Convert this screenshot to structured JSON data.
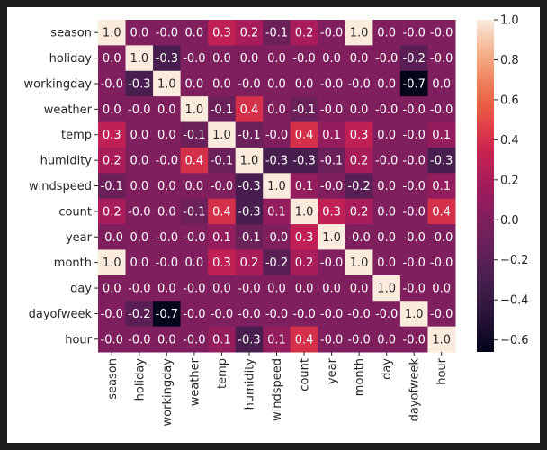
{
  "chart_data": {
    "type": "heatmap",
    "title": "",
    "xlabel": "",
    "ylabel": "",
    "annotate": true,
    "value_format": "0.0",
    "colormap": "rocket",
    "labels": [
      "season",
      "holiday",
      "workingday",
      "weather",
      "temp",
      "humidity",
      "windspeed",
      "count",
      "year",
      "month",
      "day",
      "dayofweek",
      "hour"
    ],
    "matrix": [
      [
        1.0,
        0.0,
        -0.0,
        0.0,
        0.3,
        0.2,
        -0.1,
        0.2,
        -0.0,
        1.0,
        0.0,
        -0.0,
        -0.0
      ],
      [
        0.0,
        1.0,
        -0.3,
        -0.0,
        0.0,
        0.0,
        0.0,
        -0.0,
        0.0,
        0.0,
        -0.0,
        -0.2,
        -0.0
      ],
      [
        -0.0,
        -0.3,
        1.0,
        0.0,
        0.0,
        -0.0,
        0.0,
        0.0,
        -0.0,
        -0.0,
        0.0,
        -0.7,
        0.0
      ],
      [
        0.0,
        -0.0,
        0.0,
        1.0,
        -0.1,
        0.4,
        0.0,
        -0.1,
        -0.0,
        0.0,
        -0.0,
        -0.0,
        -0.0
      ],
      [
        0.3,
        0.0,
        0.0,
        -0.1,
        1.0,
        -0.1,
        -0.0,
        0.4,
        0.1,
        0.3,
        0.0,
        -0.0,
        0.1
      ],
      [
        0.2,
        0.0,
        -0.0,
        0.4,
        -0.1,
        1.0,
        -0.3,
        -0.3,
        -0.1,
        0.2,
        -0.0,
        -0.0,
        -0.3
      ],
      [
        -0.1,
        0.0,
        0.0,
        0.0,
        -0.0,
        -0.3,
        1.0,
        0.1,
        -0.0,
        -0.2,
        0.0,
        -0.0,
        0.1
      ],
      [
        0.2,
        -0.0,
        0.0,
        -0.1,
        0.4,
        -0.3,
        0.1,
        1.0,
        0.3,
        0.2,
        0.0,
        -0.0,
        0.4
      ],
      [
        -0.0,
        0.0,
        -0.0,
        -0.0,
        0.1,
        -0.1,
        -0.0,
        0.3,
        1.0,
        -0.0,
        0.0,
        -0.0,
        -0.0
      ],
      [
        1.0,
        0.0,
        -0.0,
        0.0,
        0.3,
        0.2,
        -0.2,
        0.2,
        -0.0,
        1.0,
        0.0,
        -0.0,
        -0.0
      ],
      [
        0.0,
        -0.0,
        0.0,
        -0.0,
        0.0,
        -0.0,
        0.0,
        0.0,
        0.0,
        0.0,
        1.0,
        -0.0,
        0.0
      ],
      [
        -0.0,
        -0.2,
        -0.7,
        -0.0,
        -0.0,
        -0.0,
        -0.0,
        -0.0,
        -0.0,
        -0.0,
        -0.0,
        1.0,
        -0.0
      ],
      [
        -0.0,
        -0.0,
        0.0,
        -0.0,
        0.1,
        -0.3,
        0.1,
        0.4,
        -0.0,
        -0.0,
        0.0,
        -0.0,
        1.0
      ]
    ],
    "colorbar": {
      "range": [
        -0.66,
        1.0
      ],
      "ticks": [
        1.0,
        0.8,
        0.6,
        0.4,
        0.2,
        0.0,
        -0.2,
        -0.4,
        -0.6
      ],
      "tick_labels": [
        "1.0",
        "0.8",
        "0.6",
        "0.4",
        "0.2",
        "0.0",
        "−0.2",
        "−0.4",
        "−0.6"
      ]
    }
  }
}
